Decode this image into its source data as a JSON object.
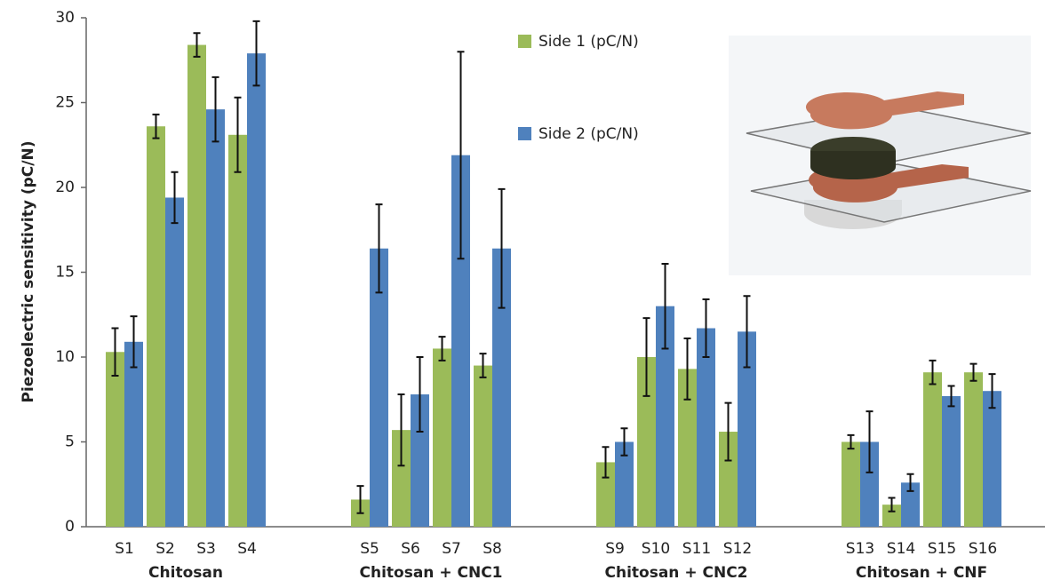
{
  "chart_data": {
    "type": "bar",
    "y_label": "Piezoelectric sensitivity (pC/N)",
    "categories": [
      "S1",
      "S2",
      "S3",
      "S4",
      null,
      null,
      "S5",
      "S6",
      "S7",
      "S8",
      null,
      null,
      "S9",
      "S10",
      "S11",
      "S12",
      null,
      null,
      "S13",
      "S14",
      "S15",
      "S16"
    ],
    "groups": [
      "Chitosan",
      "Chitosan + CNC1",
      "Chitosan + CNC2",
      "Chitosan + CNF"
    ],
    "series": [
      {
        "name": "Side 1 (pC/N)",
        "color": "#9bbb59",
        "values": [
          10.3,
          23.6,
          28.4,
          23.1,
          null,
          null,
          1.6,
          5.7,
          10.5,
          9.5,
          null,
          null,
          3.8,
          10.0,
          9.3,
          5.6,
          null,
          null,
          5.0,
          1.3,
          9.1,
          9.1
        ],
        "errors": [
          1.4,
          0.7,
          0.7,
          2.2,
          null,
          null,
          0.8,
          2.1,
          0.7,
          0.7,
          null,
          null,
          0.9,
          2.3,
          1.8,
          1.7,
          null,
          null,
          0.4,
          0.4,
          0.7,
          0.5
        ]
      },
      {
        "name": "Side 2 (pC/N)",
        "color": "#4f81bd",
        "values": [
          10.9,
          19.4,
          24.6,
          27.9,
          null,
          null,
          16.4,
          7.8,
          21.9,
          16.4,
          null,
          null,
          5.0,
          13.0,
          11.7,
          11.5,
          null,
          null,
          5.0,
          2.6,
          7.7,
          8.0
        ],
        "errors": [
          1.5,
          1.5,
          1.9,
          1.9,
          null,
          null,
          2.6,
          2.2,
          6.1,
          3.5,
          null,
          null,
          0.8,
          2.5,
          1.7,
          2.1,
          null,
          null,
          1.8,
          0.5,
          0.6,
          1.0
        ]
      }
    ],
    "ylim": [
      0,
      30
    ],
    "yticks": [
      0,
      5,
      10,
      15,
      20,
      25,
      30
    ],
    "grid": false
  }
}
